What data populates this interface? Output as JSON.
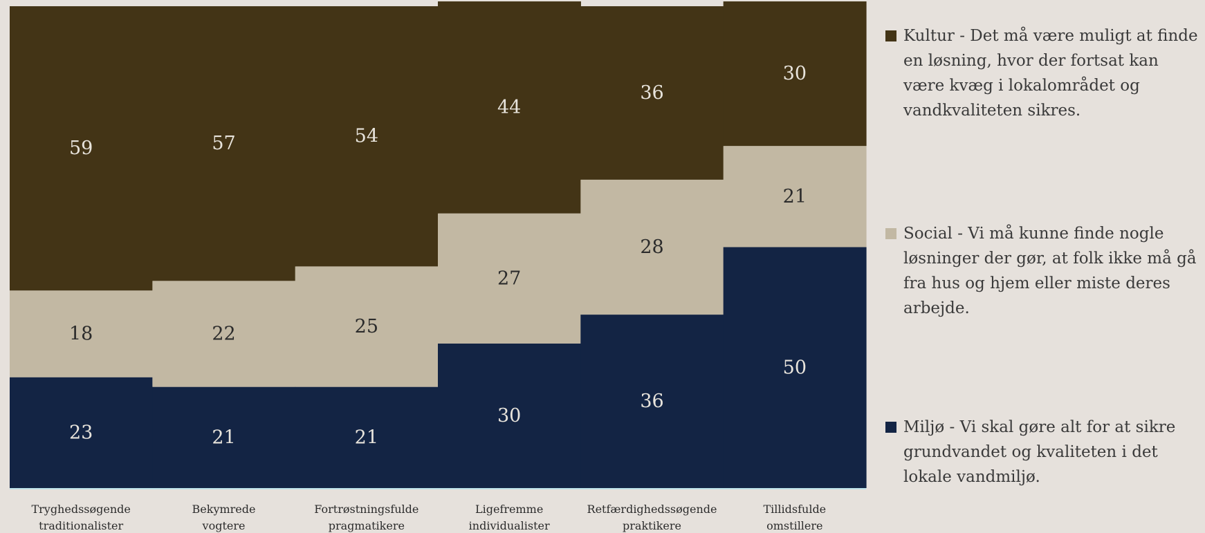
{
  "chart_data": {
    "type": "bar",
    "stacked": true,
    "normalized": true,
    "categories": [
      "Tryghedssøgende traditionalister",
      "Bekymrede vogtere",
      "Fortrøstningsfulde pragmatikere",
      "Ligefremme individualister",
      "Retfærdighedssøgende praktikere",
      "Tillidsfulde omstillere"
    ],
    "category_lines": [
      [
        "Tryghedssøgende",
        "traditionalister"
      ],
      [
        "Bekymrede",
        "vogtere"
      ],
      [
        "Fortrøstningsfulde",
        "pragmatikere"
      ],
      [
        "Ligefremme",
        "individualister"
      ],
      [
        "Retfærdighedssøgende",
        "praktikere"
      ],
      [
        "Tillidsfulde",
        "omstillere"
      ]
    ],
    "series": [
      {
        "name": "Miljø - Vi skal gøre alt for at sikre grundvandet og kvaliteten i det lokale vandmiljø.",
        "values": [
          23,
          21,
          21,
          30,
          36,
          50
        ],
        "color": "#132444",
        "label_color": "#e8e4dc"
      },
      {
        "name": "Social - Vi må kunne finde nogle løsninger der gør, at folk ikke må gå fra hus og hjem eller miste deres arbejde.",
        "values": [
          18,
          22,
          25,
          27,
          28,
          21
        ],
        "color": "#c2b8a3",
        "label_color": "#2b2b2b"
      },
      {
        "name": "Kultur - Det må være muligt at finde en løsning, hvor der fortsat kan være kvæg i lokalområdet og vandkvaliteten sikres.",
        "values": [
          59,
          57,
          54,
          44,
          36,
          30
        ],
        "color": "#433416",
        "label_color": "#e8e4dc"
      }
    ],
    "ylim": [
      0,
      100
    ],
    "grid": false,
    "legend_position": "right"
  },
  "legend": {
    "items": [
      {
        "label": "Kultur - Det må være muligt at finde en løsning, hvor der fortsat kan være kvæg i lokalområdet og vandkvaliteten sikres.",
        "color": "#433416"
      },
      {
        "label": "Social - Vi må kunne finde nogle løsninger der gør, at folk ikke må gå fra hus og hjem eller miste deres arbejde.",
        "color": "#c2b8a3"
      },
      {
        "label": "Miljø - Vi skal gøre alt for at sikre grundvandet og kvaliteten i det lokale vandmiljø.",
        "color": "#132444"
      }
    ]
  }
}
